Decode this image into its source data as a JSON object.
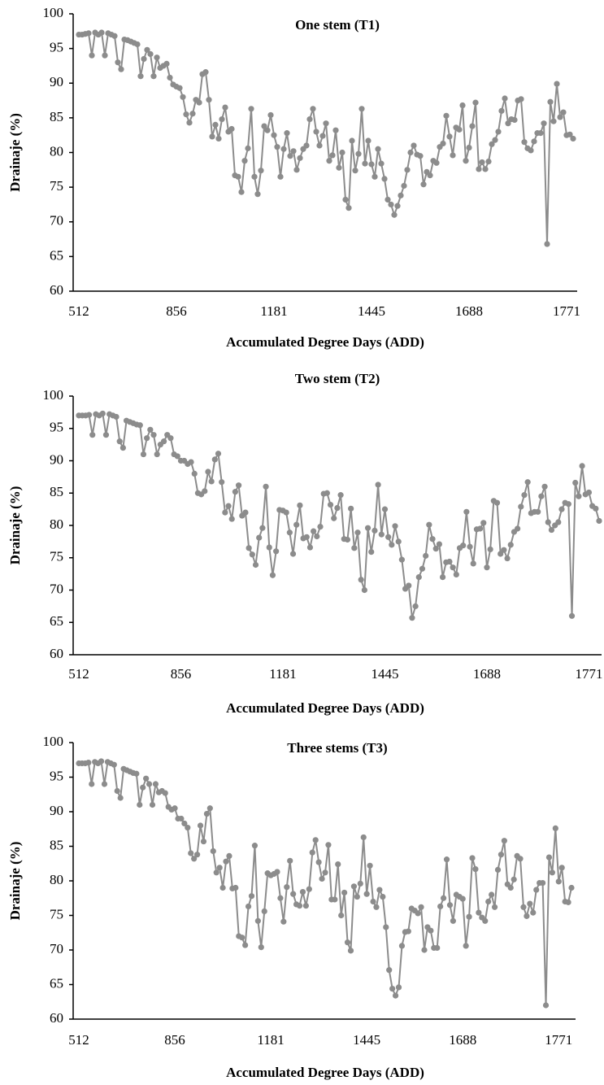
{
  "chart_data": [
    {
      "type": "line",
      "title": "One stem (T1)",
      "xlabel": "Accumulated Degree Days (ADD)",
      "ylabel": "Drainaje (%)",
      "categories": [
        "512",
        null,
        null,
        null,
        null,
        null,
        null,
        null,
        null,
        null,
        null,
        null,
        null,
        null,
        null,
        null,
        null,
        null,
        null,
        null,
        null,
        null,
        null,
        null,
        null,
        null,
        null,
        null,
        null,
        null,
        "856",
        null,
        null,
        null,
        null,
        null,
        null,
        null,
        null,
        null,
        null,
        null,
        null,
        null,
        null,
        null,
        null,
        null,
        null,
        null,
        null,
        null,
        null,
        null,
        null,
        null,
        null,
        null,
        null,
        null,
        "1181",
        null,
        null,
        null,
        null,
        null,
        null,
        null,
        null,
        null,
        null,
        null,
        null,
        null,
        null,
        null,
        null,
        null,
        null,
        null,
        null,
        null,
        null,
        null,
        null,
        null,
        null,
        null,
        null,
        null,
        "1445",
        null,
        null,
        null,
        null,
        null,
        null,
        null,
        null,
        null,
        null,
        null,
        null,
        null,
        null,
        null,
        null,
        null,
        null,
        null,
        null,
        null,
        null,
        null,
        null,
        null,
        null,
        null,
        null,
        null,
        "1688",
        null,
        null,
        null,
        null,
        null,
        null,
        null,
        null,
        null,
        null,
        null,
        null,
        null,
        null,
        null,
        null,
        null,
        null,
        null,
        null,
        null,
        null,
        null,
        null,
        null,
        null,
        null,
        null,
        null,
        "1771",
        null,
        null
      ],
      "values": [
        97,
        97,
        97.1,
        97.2,
        94,
        97.3,
        97,
        97.3,
        94,
        97.2,
        97,
        96.8,
        93,
        92,
        96.3,
        96.2,
        96,
        95.8,
        95.6,
        91,
        93.5,
        94.8,
        94.2,
        91,
        93.7,
        92.2,
        92.5,
        92.8,
        90.8,
        89.8,
        89.5,
        89.3,
        88,
        85.5,
        84.3,
        85.6,
        87.6,
        87.2,
        91.3,
        91.6,
        87.6,
        82.3,
        84,
        82,
        84.8,
        86.5,
        83,
        83.4,
        76.7,
        76.5,
        74.3,
        78.8,
        80.6,
        86.3,
        76.5,
        74,
        77.4,
        83.8,
        83.2,
        85.4,
        82.5,
        80.8,
        76.5,
        80.5,
        82.8,
        79.5,
        80.2,
        77.5,
        79.2,
        80.5,
        81,
        84.8,
        86.3,
        83,
        81,
        82.4,
        84.2,
        78.8,
        79.6,
        83.2,
        77.8,
        80,
        73.2,
        72,
        81.7,
        77.4,
        79.8,
        86.3,
        78.4,
        81.7,
        78.3,
        76.5,
        80.5,
        78.4,
        76.2,
        73.2,
        72.5,
        71,
        72.3,
        73.8,
        75.2,
        77.5,
        80,
        81,
        79.7,
        79.5,
        75.4,
        77.2,
        76.7,
        78.8,
        78.5,
        80.8,
        81.3,
        85.3,
        82.3,
        79.6,
        83.6,
        83.3,
        86.8,
        78.8,
        80.7,
        83.8,
        87.2,
        77.6,
        78.6,
        77.6,
        78.7,
        81.2,
        81.8,
        83,
        86,
        87.8,
        84.2,
        84.8,
        84.7,
        87.5,
        87.7,
        81.5,
        80.6,
        80.3,
        81.6,
        82.8,
        82.8,
        84.2,
        66.8,
        87.3,
        84.5,
        89.9,
        85.1,
        85.8,
        82.5,
        82.6,
        82
      ],
      "color": "#8c8c8c",
      "ylim": [
        60,
        100
      ],
      "yticks": [
        60,
        65,
        70,
        75,
        80,
        85,
        90,
        95,
        100
      ]
    },
    {
      "type": "line",
      "title": "Two stem (T2)",
      "xlabel": "Accumulated Degree Days (ADD)",
      "ylabel": "Drainaje (%)",
      "categories": [
        "512",
        null,
        null,
        null,
        null,
        null,
        null,
        null,
        null,
        null,
        null,
        null,
        null,
        null,
        null,
        null,
        null,
        null,
        null,
        null,
        null,
        null,
        null,
        null,
        null,
        null,
        null,
        null,
        null,
        null,
        "856",
        null,
        null,
        null,
        null,
        null,
        null,
        null,
        null,
        null,
        null,
        null,
        null,
        null,
        null,
        null,
        null,
        null,
        null,
        null,
        null,
        null,
        null,
        null,
        null,
        null,
        null,
        null,
        null,
        null,
        "1181",
        null,
        null,
        null,
        null,
        null,
        null,
        null,
        null,
        null,
        null,
        null,
        null,
        null,
        null,
        null,
        null,
        null,
        null,
        null,
        null,
        null,
        null,
        null,
        null,
        null,
        null,
        null,
        null,
        null,
        "1445",
        null,
        null,
        null,
        null,
        null,
        null,
        null,
        null,
        null,
        null,
        null,
        null,
        null,
        null,
        null,
        null,
        null,
        null,
        null,
        null,
        null,
        null,
        null,
        null,
        null,
        null,
        null,
        null,
        null,
        "1688",
        null,
        null,
        null,
        null,
        null,
        null,
        null,
        null,
        null,
        null,
        null,
        null,
        null,
        null,
        null,
        null,
        null,
        null,
        null,
        null,
        null,
        null,
        null,
        null,
        null,
        null,
        null,
        null,
        null,
        "1771",
        null,
        null,
        null
      ],
      "values": [
        97,
        97,
        97,
        97.1,
        94,
        97.2,
        97,
        97.3,
        94,
        97.2,
        97,
        96.8,
        93,
        92,
        96.2,
        96,
        95.8,
        95.6,
        95.5,
        91,
        93.5,
        94.8,
        94,
        91,
        92.5,
        93,
        94,
        93.5,
        91,
        90.7,
        90,
        90,
        89.5,
        89.8,
        88,
        85,
        84.8,
        85.3,
        88.3,
        86.8,
        90.2,
        91.1,
        86.7,
        82,
        83,
        81,
        85.2,
        86.2,
        81.5,
        82,
        76.5,
        75.5,
        73.9,
        78.1,
        79.6,
        86,
        76.6,
        72.3,
        76,
        82.4,
        82.3,
        82,
        78.9,
        75.6,
        80.1,
        83.1,
        78,
        78.2,
        76.6,
        79.1,
        78.3,
        79.8,
        84.9,
        85,
        83.2,
        81.1,
        82.7,
        84.7,
        77.9,
        77.8,
        82.6,
        76.5,
        78.9,
        71.6,
        70,
        79.6,
        75.9,
        79.2,
        86.3,
        78.6,
        82.5,
        78.2,
        77,
        79.9,
        77.5,
        74.7,
        70.2,
        70.7,
        65.7,
        67.5,
        72,
        73.3,
        75.3,
        80.1,
        77.9,
        76.4,
        77.1,
        72,
        74.3,
        74.4,
        73.5,
        72.4,
        76.5,
        76.9,
        82.1,
        76.7,
        74.1,
        79.4,
        79.5,
        80.4,
        73.5,
        76.3,
        83.8,
        83.5,
        75.6,
        76.2,
        74.9,
        77,
        79,
        79.5,
        82.9,
        84.7,
        86.7,
        81.9,
        82.1,
        82.1,
        84.5,
        86,
        80.5,
        79.3,
        80,
        80.5,
        82.5,
        83.5,
        83.3,
        66,
        86.6,
        84.5,
        89.2,
        84.8,
        85.1,
        83,
        82.6,
        80.7
      ],
      "color": "#8c8c8c",
      "ylim": [
        60,
        100
      ],
      "yticks": [
        60,
        65,
        70,
        75,
        80,
        85,
        90,
        95,
        100
      ]
    },
    {
      "type": "line",
      "title": "Three stems (T3)",
      "xlabel": "Accumulated Degree Days (ADD)",
      "ylabel": "Drainaje (%)",
      "categories": [
        "512",
        null,
        null,
        null,
        null,
        null,
        null,
        null,
        null,
        null,
        null,
        null,
        null,
        null,
        null,
        null,
        null,
        null,
        null,
        null,
        null,
        null,
        null,
        null,
        null,
        null,
        null,
        null,
        null,
        null,
        "856",
        null,
        null,
        null,
        null,
        null,
        null,
        null,
        null,
        null,
        null,
        null,
        null,
        null,
        null,
        null,
        null,
        null,
        null,
        null,
        null,
        null,
        null,
        null,
        null,
        null,
        null,
        null,
        null,
        null,
        "1181",
        null,
        null,
        null,
        null,
        null,
        null,
        null,
        null,
        null,
        null,
        null,
        null,
        null,
        null,
        null,
        null,
        null,
        null,
        null,
        null,
        null,
        null,
        null,
        null,
        null,
        null,
        null,
        null,
        null,
        "1445",
        null,
        null,
        null,
        null,
        null,
        null,
        null,
        null,
        null,
        null,
        null,
        null,
        null,
        null,
        null,
        null,
        null,
        null,
        null,
        null,
        null,
        null,
        null,
        null,
        null,
        null,
        null,
        null,
        null,
        "1688",
        null,
        null,
        null,
        null,
        null,
        null,
        null,
        null,
        null,
        null,
        null,
        null,
        null,
        null,
        null,
        null,
        null,
        null,
        null,
        null,
        null,
        null,
        null,
        null,
        null,
        null,
        null,
        null,
        null,
        "1771",
        null,
        null,
        null,
        null
      ],
      "values": [
        97,
        97,
        97,
        97.1,
        94,
        97.2,
        97,
        97.3,
        94,
        97.2,
        97,
        96.8,
        93,
        92,
        96.2,
        96,
        95.8,
        95.6,
        95.5,
        91,
        93.5,
        94.8,
        94,
        91,
        94,
        92.8,
        93,
        92.7,
        90.7,
        90.3,
        90.5,
        89,
        89,
        88.3,
        87.7,
        84,
        83.2,
        83.8,
        88,
        85.7,
        89.7,
        90.5,
        84.3,
        81.2,
        81.9,
        79,
        82.8,
        83.6,
        78.9,
        79,
        72,
        71.8,
        70.7,
        76.3,
        77.8,
        85.1,
        74.2,
        70.4,
        75.6,
        81.1,
        80.8,
        81,
        81.3,
        77.5,
        74.1,
        79.1,
        82.9,
        78.1,
        76.6,
        76.4,
        78.4,
        76.4,
        78.8,
        84.1,
        85.9,
        82.7,
        80.3,
        81.2,
        85.2,
        77.3,
        77.3,
        82.4,
        75,
        78.3,
        71.1,
        69.9,
        79.2,
        77.7,
        79.6,
        86.3,
        78.1,
        82.2,
        77,
        76.2,
        78.7,
        77.7,
        73.3,
        67.1,
        64.4,
        63.4,
        64.6,
        70.6,
        72.6,
        72.7,
        76,
        75.7,
        75.3,
        76.2,
        70,
        73.3,
        72.8,
        70.3,
        70.3,
        76.3,
        77.5,
        83.1,
        76.5,
        74.2,
        78,
        77.7,
        77.4,
        70.6,
        74.8,
        83.3,
        81.7,
        75.4,
        74.7,
        74.2,
        77,
        78,
        76.2,
        81.6,
        83.8,
        85.8,
        79.5,
        79,
        80.2,
        83.6,
        83.2,
        76.2,
        74.9,
        76.7,
        75.4,
        78.7,
        79.7,
        79.7,
        62,
        83.4,
        81.2,
        87.6,
        79.9,
        81.9,
        77,
        76.9,
        79
      ],
      "color": "#8c8c8c",
      "ylim": [
        60,
        100
      ],
      "yticks": [
        60,
        65,
        70,
        75,
        80,
        85,
        90,
        95,
        100
      ]
    }
  ]
}
